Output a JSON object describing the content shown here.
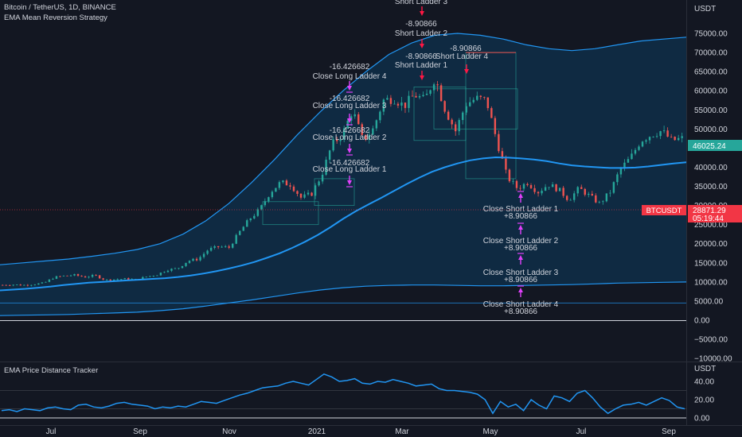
{
  "header": {
    "symbol_line": "Bitcoin / TetherUS, 1D, BINANCE",
    "strategy_name": "EMA Mean Reversion Strategy"
  },
  "colors": {
    "background": "#131722",
    "grid": "#1e222d",
    "text": "#d1d4dc",
    "candle_up": "#26a69a",
    "candle_down": "#ef5350",
    "ema": "#2196f3",
    "band": "#2196f3",
    "band_fill": "#0d3a5c",
    "short_marker": "#ff1744",
    "long_close_marker": "#e040fb",
    "price_label": "#26a69a",
    "btc_label": "#f23645"
  },
  "chart_data": [
    {
      "type": "candlestick",
      "title": "",
      "ylabel": "USDT",
      "y_ticks": [
        -10000,
        -5000,
        0,
        5000,
        10000,
        15000,
        20000,
        25000,
        30000,
        35000,
        40000,
        45000,
        50000,
        55000,
        60000,
        65000,
        70000,
        75000
      ],
      "y_tick_labels": [
        "−10000.00",
        "−5000.00",
        "0.00",
        "5000.00",
        "10000.00",
        "15000.00",
        "20000.00",
        "25000.00",
        "30000.00",
        "35000.00",
        "40000.00",
        "45000.00",
        "50000.00",
        "55000.00",
        "60000.00",
        "65000.00",
        "70000.00",
        "75000.00"
      ],
      "ylim": [
        -10000,
        78000
      ],
      "x_ticks": [
        "Jul",
        "Sep",
        "Nov",
        "2021",
        "Mar",
        "May",
        "Jul",
        "Sep"
      ],
      "price_close_approx": [
        9200,
        9300,
        9150,
        9400,
        9700,
        11200,
        11600,
        11800,
        11300,
        11700,
        10500,
        10700,
        10800,
        10600,
        11400,
        11900,
        13200,
        13500,
        15500,
        16000,
        18500,
        19200,
        19000,
        23000,
        26500,
        29000,
        33500,
        36000,
        35500,
        32000,
        33000,
        38000,
        46000,
        48500,
        55000,
        47000,
        50000,
        57500,
        58000,
        56000,
        59000,
        57500,
        63500,
        55000,
        49500,
        56500,
        58000,
        57500,
        47000,
        37500,
        34500,
        36000,
        33500,
        35500,
        34200,
        31500,
        34500,
        32500,
        30500,
        33500,
        39500,
        42500,
        47000,
        48500,
        49500,
        47000,
        47500
      ],
      "ema_approx": [
        7800,
        8000,
        8200,
        8500,
        8800,
        9200,
        9500,
        9800,
        10000,
        10200,
        10400,
        10600,
        10800,
        11000,
        11300,
        11700,
        12200,
        12800,
        13500,
        14300,
        15200,
        16300,
        17500,
        18900,
        20500,
        22300,
        24300,
        26500,
        28500,
        30300,
        32000,
        33800,
        35600,
        37300,
        38800,
        40000,
        41000,
        41800,
        42300,
        42600,
        42500,
        42300,
        42000,
        41600,
        41000,
        40500,
        40200,
        40000,
        39800,
        39800,
        39900,
        40200,
        40600,
        41000,
        41300
      ],
      "upper_band_approx": [
        14500,
        15000,
        15500,
        16000,
        16700,
        17500,
        18500,
        20000,
        22500,
        26000,
        30500,
        36000,
        42000,
        48500,
        54500,
        60000,
        65000,
        69500,
        72500,
        74500,
        75000,
        74500,
        73500,
        72000,
        71000,
        70500,
        71000,
        72000,
        73000,
        73500,
        74000
      ],
      "lower_band_approx": [
        1200,
        1300,
        1400,
        1500,
        1700,
        1900,
        2100,
        2500,
        3000,
        3700,
        4500,
        5300,
        6200,
        7100,
        7900,
        8500,
        8900,
        9100,
        9200,
        9200,
        9100,
        9000,
        9000,
        9100,
        9200,
        9300,
        9500,
        9700,
        9800,
        9900,
        10000
      ],
      "price_labels": [
        {
          "text": "46025.24",
          "value": 46025.24
        },
        {
          "text": "BTCUSDT",
          "value": 28871.29
        },
        {
          "text": "28871.29",
          "value": 28871.29
        },
        {
          "text": "05:19:44",
          "value": 28871.29
        }
      ],
      "annotations": [
        {
          "label": "Short Ladder 3",
          "value": "",
          "type": "short"
        },
        {
          "label": "Short Ladder 2",
          "value": "-8.90866",
          "type": "short"
        },
        {
          "label": "Short Ladder 1",
          "value": "-8.90866",
          "type": "short"
        },
        {
          "label": "Short Ladder 4",
          "value": "-8.90866",
          "type": "short"
        },
        {
          "label": "Close Long Ladder 4",
          "value": "-16.426682",
          "type": "close_long"
        },
        {
          "label": "Close Long Ladder 3",
          "value": "-16.426682",
          "type": "close_long"
        },
        {
          "label": "Close Long Ladder 2",
          "value": "-16.426682",
          "type": "close_long"
        },
        {
          "label": "Close Long Ladder 1",
          "value": "-16.426682",
          "type": "close_long"
        },
        {
          "label": "Close Short Ladder 1",
          "value": "+8.90866",
          "type": "close_short"
        },
        {
          "label": "Close Short Ladder 2",
          "value": "+8.90866",
          "type": "close_short"
        },
        {
          "label": "Close Short Ladder 3",
          "value": "+8.90866",
          "type": "close_short"
        },
        {
          "label": "Close Short Ladder 4",
          "value": "+8.90866",
          "type": "close_short"
        }
      ],
      "grid": false
    },
    {
      "type": "line",
      "title": "EMA Price Distance Tracker",
      "ylabel": "USDT",
      "y_ticks": [
        0,
        20,
        40
      ],
      "y_tick_labels": [
        "0.00",
        "20.00",
        "40.00"
      ],
      "ylim": [
        0,
        55
      ],
      "levels": [
        10,
        30
      ],
      "series": [
        {
          "values": [
            8,
            9,
            7,
            10,
            9,
            8,
            11,
            12,
            10,
            9,
            14,
            15,
            12,
            11,
            13,
            16,
            17,
            15,
            14,
            13,
            10,
            12,
            11,
            13,
            12,
            15,
            18,
            17,
            16,
            19,
            22,
            25,
            27,
            30,
            33,
            34,
            35,
            38,
            40,
            38,
            36,
            42,
            48,
            45,
            40,
            41,
            43,
            38,
            37,
            40,
            39,
            42,
            40,
            38,
            35,
            36,
            37,
            32,
            30,
            30,
            29,
            28,
            26,
            20,
            5,
            18,
            12,
            15,
            8,
            20,
            14,
            10,
            24,
            22,
            18,
            27,
            30,
            22,
            12,
            5,
            10,
            14,
            15,
            17,
            14,
            18,
            22,
            19,
            12,
            10
          ]
        }
      ]
    }
  ]
}
